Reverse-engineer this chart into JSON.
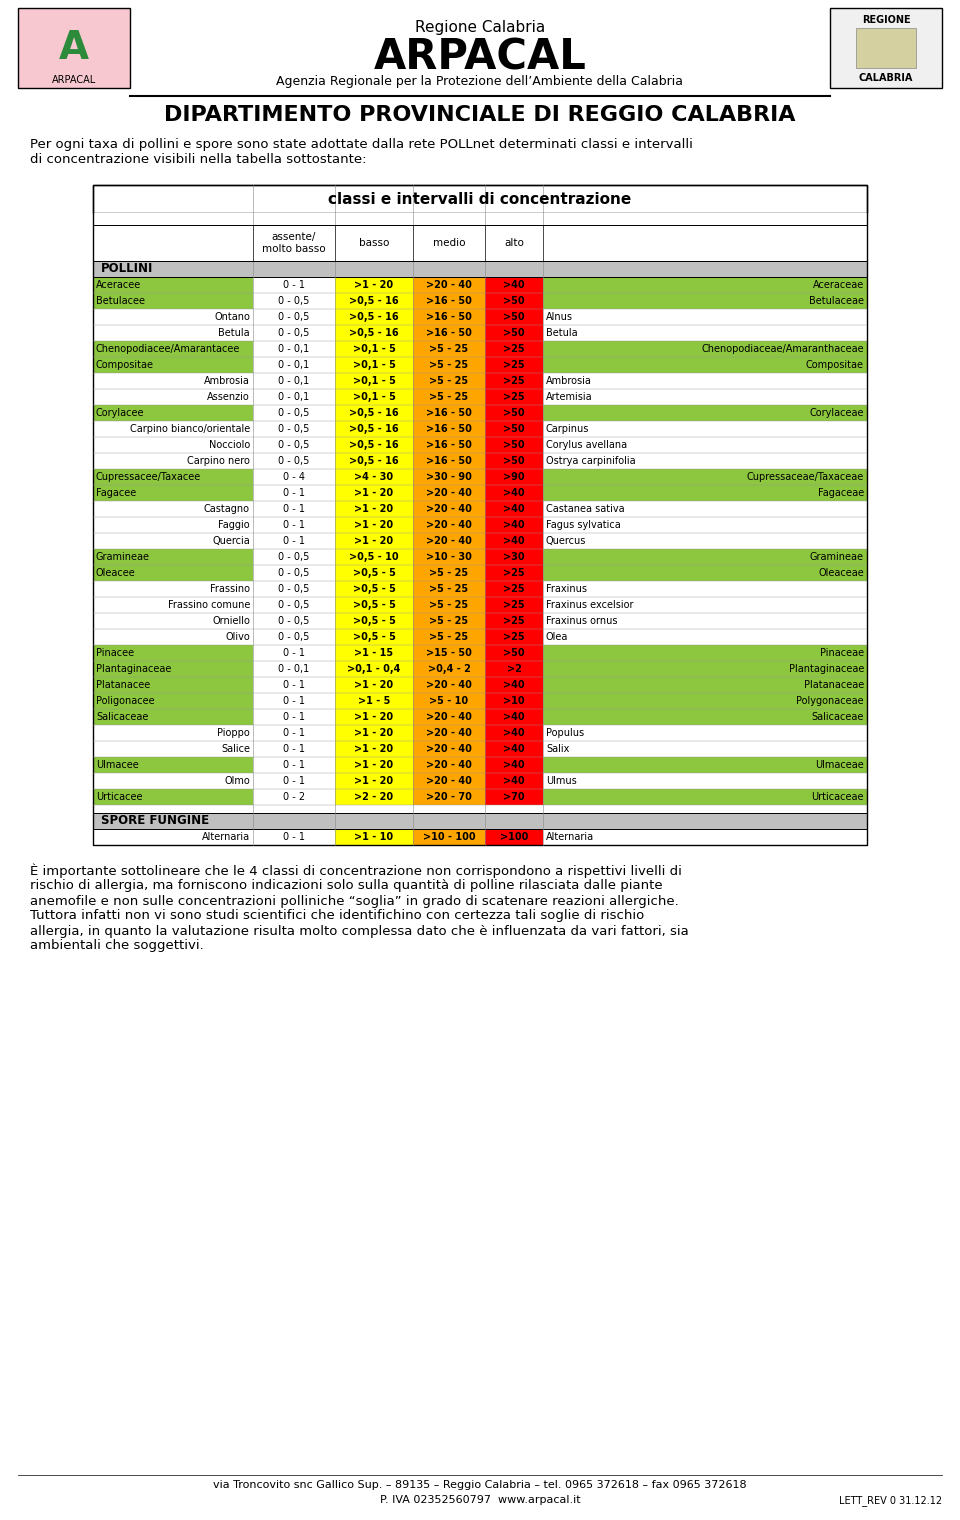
{
  "title_regione": "Regione Calabria",
  "title_main": "ARPACAL",
  "title_sub": "Agenzia Regionale per la Protezione dell’Ambiente della Calabria",
  "title_dept": "DIPARTIMENTO PROVINCIALE DI REGGIO CALABRIA",
  "intro_text": "Per ogni taxa di pollini e spore sono state adottate dalla rete POLLnet determinati classi e intervalli\ndi concentrazione visibili nella tabella sottostante:",
  "table_title": "classi e intervalli di concentrazione",
  "col_headers": [
    "assente/\nmolto basso",
    "basso",
    "medio",
    "alto"
  ],
  "pollini_section": "POLLINI",
  "spore_section": "SPORE FUNGINE",
  "color_green": "#8DC63F",
  "color_yellow": "#FFFF00",
  "color_orange": "#FFA500",
  "color_red": "#FF0000",
  "color_gray_header": "#C0C0C0",
  "rows": [
    {
      "name": "Aceracee",
      "latin": "Aceraceae",
      "type": "family",
      "c1": "0 - 1",
      "c2": ">1 - 20",
      "c3": ">20 - 40",
      "c4": ">40"
    },
    {
      "name": "Betulacee",
      "latin": "Betulaceae",
      "type": "family",
      "c1": "0 - 0,5",
      "c2": ">0,5 - 16",
      "c3": ">16 - 50",
      "c4": ">50"
    },
    {
      "name": "Ontano",
      "latin": "Alnus",
      "type": "sub",
      "c1": "0 - 0,5",
      "c2": ">0,5 - 16",
      "c3": ">16 - 50",
      "c4": ">50"
    },
    {
      "name": "Betula",
      "latin": "Betula",
      "type": "sub",
      "c1": "0 - 0,5",
      "c2": ">0,5 - 16",
      "c3": ">16 - 50",
      "c4": ">50"
    },
    {
      "name": "Chenopodiacee/Amarantacee",
      "latin": "Chenopodiaceae/Amaranthaceae",
      "type": "family",
      "c1": "0 - 0,1",
      "c2": ">0,1 - 5",
      "c3": ">5 - 25",
      "c4": ">25"
    },
    {
      "name": "Compositae",
      "latin": "Compositae",
      "type": "family",
      "c1": "0 - 0,1",
      "c2": ">0,1 - 5",
      "c3": ">5 - 25",
      "c4": ">25"
    },
    {
      "name": "Ambrosia",
      "latin": "Ambrosia",
      "type": "sub",
      "c1": "0 - 0,1",
      "c2": ">0,1 - 5",
      "c3": ">5 - 25",
      "c4": ">25"
    },
    {
      "name": "Assenzio",
      "latin": "Artemisia",
      "type": "sub",
      "c1": "0 - 0,1",
      "c2": ">0,1 - 5",
      "c3": ">5 - 25",
      "c4": ">25"
    },
    {
      "name": "Corylacee",
      "latin": "Corylaceae",
      "type": "family",
      "c1": "0 - 0,5",
      "c2": ">0,5 - 16",
      "c3": ">16 - 50",
      "c4": ">50"
    },
    {
      "name": "Carpino bianco/orientale",
      "latin": "Carpinus",
      "type": "sub",
      "c1": "0 - 0,5",
      "c2": ">0,5 - 16",
      "c3": ">16 - 50",
      "c4": ">50"
    },
    {
      "name": "Nocciolo",
      "latin": "Corylus avellana",
      "type": "sub",
      "c1": "0 - 0,5",
      "c2": ">0,5 - 16",
      "c3": ">16 - 50",
      "c4": ">50"
    },
    {
      "name": "Carpino nero",
      "latin": "Ostrya carpinifolia",
      "type": "sub",
      "c1": "0 - 0,5",
      "c2": ">0,5 - 16",
      "c3": ">16 - 50",
      "c4": ">50"
    },
    {
      "name": "Cupressacee/Taxacee",
      "latin": "Cupressaceae/Taxaceae",
      "type": "family",
      "c1": "0 - 4",
      "c2": ">4 - 30",
      "c3": ">30 - 90",
      "c4": ">90"
    },
    {
      "name": "Fagacee",
      "latin": "Fagaceae",
      "type": "family",
      "c1": "0 - 1",
      "c2": ">1 - 20",
      "c3": ">20 - 40",
      "c4": ">40"
    },
    {
      "name": "Castagno",
      "latin": "Castanea sativa",
      "type": "sub",
      "c1": "0 - 1",
      "c2": ">1 - 20",
      "c3": ">20 - 40",
      "c4": ">40"
    },
    {
      "name": "Faggio",
      "latin": "Fagus sylvatica",
      "type": "sub",
      "c1": "0 - 1",
      "c2": ">1 - 20",
      "c3": ">20 - 40",
      "c4": ">40"
    },
    {
      "name": "Quercia",
      "latin": "Quercus",
      "type": "sub",
      "c1": "0 - 1",
      "c2": ">1 - 20",
      "c3": ">20 - 40",
      "c4": ">40"
    },
    {
      "name": "Gramineae",
      "latin": "Gramineae",
      "type": "family",
      "c1": "0 - 0,5",
      "c2": ">0,5 - 10",
      "c3": ">10 - 30",
      "c4": ">30"
    },
    {
      "name": "Oleacee",
      "latin": "Oleaceae",
      "type": "family",
      "c1": "0 - 0,5",
      "c2": ">0,5 - 5",
      "c3": ">5 - 25",
      "c4": ">25"
    },
    {
      "name": "Frassino",
      "latin": "Fraxinus",
      "type": "sub",
      "c1": "0 - 0,5",
      "c2": ">0,5 - 5",
      "c3": ">5 - 25",
      "c4": ">25"
    },
    {
      "name": "Frassino comune",
      "latin": "Fraxinus excelsior",
      "type": "sub",
      "c1": "0 - 0,5",
      "c2": ">0,5 - 5",
      "c3": ">5 - 25",
      "c4": ">25"
    },
    {
      "name": "Orniello",
      "latin": "Fraxinus ornus",
      "type": "sub",
      "c1": "0 - 0,5",
      "c2": ">0,5 - 5",
      "c3": ">5 - 25",
      "c4": ">25"
    },
    {
      "name": "Olivo",
      "latin": "Olea",
      "type": "sub",
      "c1": "0 - 0,5",
      "c2": ">0,5 - 5",
      "c3": ">5 - 25",
      "c4": ">25"
    },
    {
      "name": "Pinacee",
      "latin": "Pinaceae",
      "type": "family",
      "c1": "0 - 1",
      "c2": ">1 - 15",
      "c3": ">15 - 50",
      "c4": ">50"
    },
    {
      "name": "Plantaginaceae",
      "latin": "Plantaginaceae",
      "type": "family",
      "c1": "0 - 0,1",
      "c2": ">0,1 - 0,4",
      "c3": ">0,4 - 2",
      "c4": ">2"
    },
    {
      "name": "Platanacee",
      "latin": "Platanaceae",
      "type": "family",
      "c1": "0 - 1",
      "c2": ">1 - 20",
      "c3": ">20 - 40",
      "c4": ">40"
    },
    {
      "name": "Poligonacee",
      "latin": "Polygonaceae",
      "type": "family",
      "c1": "0 - 1",
      "c2": ">1 - 5",
      "c3": ">5 - 10",
      "c4": ">10"
    },
    {
      "name": "Salicaceae",
      "latin": "Salicaceae",
      "type": "family",
      "c1": "0 - 1",
      "c2": ">1 - 20",
      "c3": ">20 - 40",
      "c4": ">40"
    },
    {
      "name": "Pioppo",
      "latin": "Populus",
      "type": "sub",
      "c1": "0 - 1",
      "c2": ">1 - 20",
      "c3": ">20 - 40",
      "c4": ">40"
    },
    {
      "name": "Salice",
      "latin": "Salix",
      "type": "sub",
      "c1": "0 - 1",
      "c2": ">1 - 20",
      "c3": ">20 - 40",
      "c4": ">40"
    },
    {
      "name": "Ulmacee",
      "latin": "Ulmaceae",
      "type": "family",
      "c1": "0 - 1",
      "c2": ">1 - 20",
      "c3": ">20 - 40",
      "c4": ">40"
    },
    {
      "name": "Olmo",
      "latin": "Ulmus",
      "type": "sub",
      "c1": "0 - 1",
      "c2": ">1 - 20",
      "c3": ">20 - 40",
      "c4": ">40"
    },
    {
      "name": "Urticacee",
      "latin": "Urticaceae",
      "type": "family",
      "c1": "0 - 2",
      "c2": ">2 - 20",
      "c3": ">20 - 70",
      "c4": ">70"
    }
  ],
  "spore_rows": [
    {
      "name": "Alternaria",
      "latin": "Alternaria",
      "type": "spore",
      "c1": "0 - 1",
      "c2": ">1 - 10",
      "c3": ">10 - 100",
      "c4": ">100"
    }
  ],
  "footer_text1": "via Troncovito snc Gallico Sup. – 89135 – Reggio Calabria – tel. 0965 372618 – fax 0965 372618",
  "footer_text2": "P. IVA 02352560797  www.arpacal.it",
  "footer_ref": "LETT_REV 0 31.12.12",
  "conclusion_text": "È importante sottolineare che le 4 classi di concentrazione non corrispondono a rispettivi livelli di\nrischio di allergia, ma forniscono indicazioni solo sulla quantità di polline rilasciata dalle piante\nanemofile e non sulle concentrazioni polliniche “soglia” in grado di scatenare reazioni allergiche.\nTuttora infatti non vi sono studi scientifici che identifichino con certezza tali soglie di rischio\nallergia, in quanto la valutazione risulta molto complessa dato che è influenzata da vari fattori, sia\nambientali che soggettivi."
}
